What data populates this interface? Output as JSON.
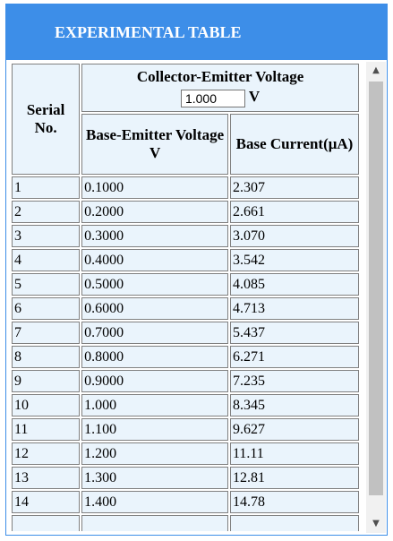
{
  "header": {
    "title": "EXPERIMENTAL TABLE"
  },
  "table": {
    "serial_header": "Serial No.",
    "vce_header": "Collector-Emitter Voltage",
    "vce_value": "1.000",
    "vce_unit": "V",
    "vbe_header": "Base-Emitter Voltage",
    "vbe_unit": "V",
    "ib_header": "Base Current(μA)",
    "rows": [
      {
        "serial": "1",
        "vbe": "0.1000",
        "ib": "2.307"
      },
      {
        "serial": "2",
        "vbe": "0.2000",
        "ib": "2.661"
      },
      {
        "serial": "3",
        "vbe": "0.3000",
        "ib": "3.070"
      },
      {
        "serial": "4",
        "vbe": "0.4000",
        "ib": "3.542"
      },
      {
        "serial": "5",
        "vbe": "0.5000",
        "ib": "4.085"
      },
      {
        "serial": "6",
        "vbe": "0.6000",
        "ib": "4.713"
      },
      {
        "serial": "7",
        "vbe": "0.7000",
        "ib": "5.437"
      },
      {
        "serial": "8",
        "vbe": "0.8000",
        "ib": "6.271"
      },
      {
        "serial": "9",
        "vbe": "0.9000",
        "ib": "7.235"
      },
      {
        "serial": "10",
        "vbe": "1.000",
        "ib": "8.345"
      },
      {
        "serial": "11",
        "vbe": "1.100",
        "ib": "9.627"
      },
      {
        "serial": "12",
        "vbe": "1.200",
        "ib": "11.11"
      },
      {
        "serial": "13",
        "vbe": "1.300",
        "ib": "12.81"
      },
      {
        "serial": "14",
        "vbe": "1.400",
        "ib": "14.78"
      }
    ]
  },
  "scrollbar": {
    "up_icon": "triangle-up-icon",
    "down_icon": "triangle-down-icon"
  },
  "colors": {
    "header_bg": "#3d8ee8",
    "cell_bg": "#eaf4fc"
  }
}
